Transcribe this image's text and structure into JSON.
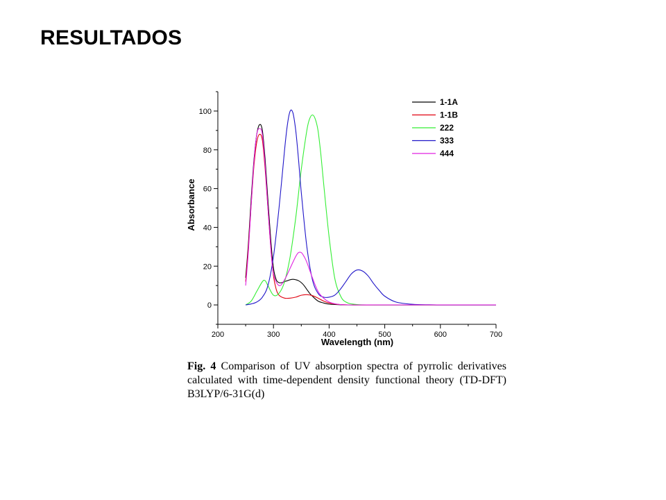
{
  "slide": {
    "title": "RESULTADOS"
  },
  "caption": {
    "label": "Fig. 4",
    "text": "  Comparison of  UV absorption spectra of pyrrolic derivatives calculated with time-dependent density functional theory (TD-DFT) B3LYP/6-31G(d)"
  },
  "chart_data": {
    "type": "line",
    "title": "",
    "xlabel": "Wavelength (nm)",
    "ylabel": "Absorbance",
    "xlim": [
      200,
      700
    ],
    "ylim": [
      -10,
      110
    ],
    "xticks": [
      200,
      300,
      400,
      500,
      600,
      700
    ],
    "xtick_labels": [
      "200",
      "300",
      "400",
      "500",
      "600",
      "700"
    ],
    "yticks": [
      0,
      20,
      40,
      60,
      80,
      100
    ],
    "ytick_labels": [
      "0",
      "20",
      "40",
      "60",
      "80",
      "100"
    ],
    "grid": false,
    "legend_position": "top-right",
    "series": [
      {
        "name": "1-1A",
        "color": "#000000",
        "x": [
          250,
          255,
          260,
          265,
          270,
          275,
          280,
          285,
          290,
          295,
          300,
          305,
          310,
          315,
          320,
          325,
          330,
          335,
          340,
          345,
          350,
          355,
          360,
          365,
          370,
          380,
          390,
          400,
          420,
          450,
          500,
          600,
          700
        ],
        "y": [
          14,
          32,
          55,
          75,
          88,
          93,
          90,
          75,
          54,
          34,
          19,
          13,
          11.5,
          11.5,
          12,
          12.5,
          13,
          13.2,
          13,
          12.5,
          11.5,
          10,
          8,
          6,
          4.5,
          2,
          1,
          0.4,
          0.1,
          0,
          0,
          0,
          0
        ]
      },
      {
        "name": "1-1B",
        "color": "#e0000f",
        "x": [
          250,
          255,
          260,
          265,
          270,
          275,
          280,
          285,
          290,
          295,
          300,
          305,
          310,
          320,
          330,
          340,
          350,
          360,
          370,
          380,
          390,
          400,
          410,
          420,
          450,
          500,
          600,
          700
        ],
        "y": [
          12,
          30,
          52,
          72,
          84,
          88,
          85,
          70,
          50,
          30,
          15,
          8,
          5,
          3.5,
          3.5,
          4,
          5,
          5.3,
          4.8,
          3.5,
          2,
          1,
          0.5,
          0.2,
          0,
          0,
          0,
          0
        ]
      },
      {
        "name": "222",
        "color": "#33ee33",
        "x": [
          250,
          260,
          270,
          280,
          285,
          290,
          300,
          310,
          320,
          330,
          340,
          350,
          360,
          365,
          370,
          375,
          380,
          385,
          390,
          400,
          410,
          420,
          430,
          450,
          500,
          600,
          700
        ],
        "y": [
          0,
          2,
          7,
          12,
          12.5,
          10,
          5,
          6,
          12,
          25,
          45,
          70,
          90,
          96,
          98,
          96,
          90,
          78,
          63,
          35,
          14,
          5,
          1.5,
          0.2,
          0,
          0,
          0
        ]
      },
      {
        "name": "333",
        "color": "#1e14c8",
        "x": [
          250,
          260,
          270,
          280,
          290,
          300,
          310,
          320,
          325,
          330,
          335,
          340,
          345,
          350,
          360,
          370,
          380,
          390,
          400,
          410,
          420,
          430,
          440,
          450,
          460,
          470,
          480,
          490,
          500,
          520,
          550,
          580,
          600,
          650,
          700
        ],
        "y": [
          0,
          0.5,
          1.5,
          4,
          10,
          25,
          50,
          80,
          93,
          100,
          99,
          90,
          75,
          58,
          30,
          13,
          6,
          4,
          4,
          5,
          8,
          12,
          16,
          18,
          17.5,
          15,
          11,
          7.5,
          4.5,
          1.5,
          0.3,
          0.1,
          0,
          0,
          0
        ]
      },
      {
        "name": "444",
        "color": "#e020e0",
        "x": [
          250,
          255,
          260,
          265,
          270,
          275,
          280,
          285,
          290,
          295,
          300,
          310,
          320,
          330,
          340,
          345,
          350,
          355,
          360,
          370,
          380,
          390,
          400,
          410,
          420,
          440,
          460,
          500,
          600,
          700
        ],
        "y": [
          10,
          28,
          52,
          74,
          88,
          91,
          88,
          72,
          50,
          30,
          16,
          10,
          13,
          19,
          25,
          27,
          27,
          25,
          22,
          14,
          7,
          3.5,
          1.5,
          0.6,
          0.2,
          0,
          0,
          0,
          0,
          0
        ]
      }
    ]
  }
}
